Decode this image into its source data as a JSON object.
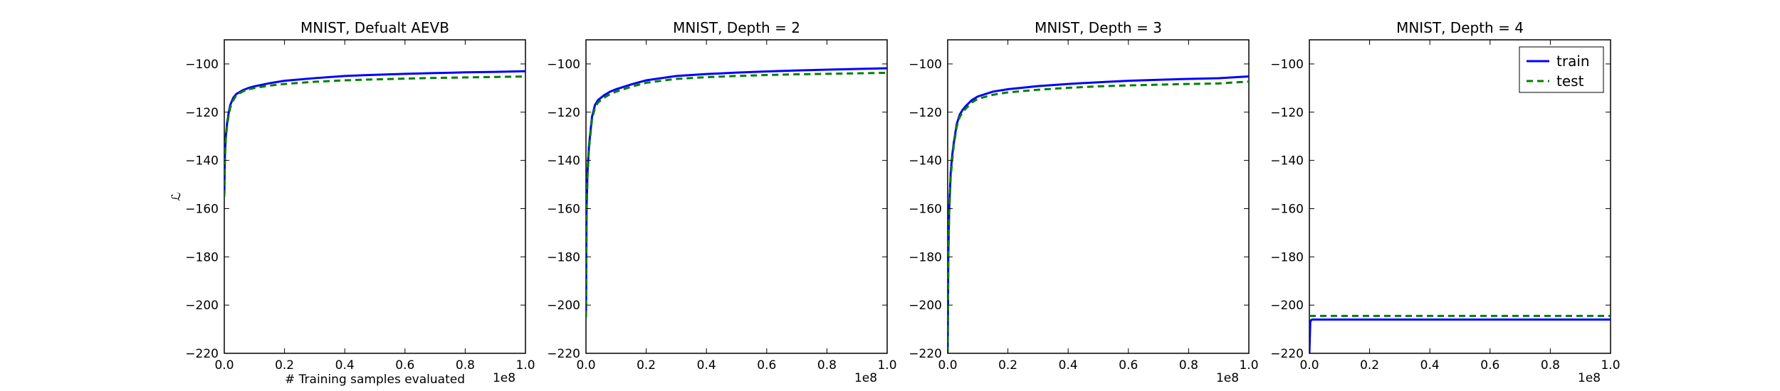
{
  "colors": {
    "train": "#0000ff",
    "test": "#008000",
    "axes": "#000000",
    "background": "#ffffff"
  },
  "chart_data": [
    {
      "type": "line",
      "title": "MNIST, Defualt AEVB",
      "xlabel": "# Training samples evaluated",
      "ylabel": "ℒ",
      "x_offset_text": "1e8",
      "xlim": [
        0,
        1.0
      ],
      "ylim": [
        -220,
        -90
      ],
      "xticks": [
        0.0,
        0.2,
        0.4,
        0.6,
        0.8,
        1.0
      ],
      "xtick_labels": [
        "0.0",
        "0.2",
        "0.4",
        "0.6",
        "0.8",
        "1.0"
      ],
      "yticks": [
        -220,
        -200,
        -180,
        -160,
        -140,
        -120,
        -100
      ],
      "ytick_labels": [
        "−220",
        "−200",
        "−180",
        "−160",
        "−140",
        "−120",
        "−100"
      ],
      "grid": false,
      "legend": null,
      "series": [
        {
          "key": "train",
          "style": "solid",
          "x": [
            0,
            0.002,
            0.005,
            0.01,
            0.015,
            0.02,
            0.03,
            0.04,
            0.06,
            0.08,
            0.1,
            0.15,
            0.2,
            0.3,
            0.4,
            0.5,
            0.6,
            0.7,
            0.8,
            0.9,
            1.0
          ],
          "y": [
            -155,
            -138,
            -130,
            -124,
            -120,
            -117,
            -114,
            -112.5,
            -111,
            -110,
            -109.3,
            -108,
            -107,
            -105.9,
            -105,
            -104.5,
            -104.1,
            -103.8,
            -103.5,
            -103.3,
            -103
          ]
        },
        {
          "key": "test",
          "style": "dashed",
          "x": [
            0,
            0.002,
            0.005,
            0.01,
            0.015,
            0.02,
            0.03,
            0.04,
            0.06,
            0.08,
            0.1,
            0.15,
            0.2,
            0.3,
            0.4,
            0.5,
            0.6,
            0.7,
            0.8,
            0.9,
            1.0
          ],
          "y": [
            -155,
            -140,
            -131,
            -125,
            -121,
            -118,
            -115,
            -113,
            -111.5,
            -110.5,
            -110,
            -109,
            -108.3,
            -107.4,
            -106.8,
            -106.4,
            -106.1,
            -105.8,
            -105.6,
            -105.4,
            -105.2
          ]
        }
      ]
    },
    {
      "type": "line",
      "title": "MNIST, Depth = 2",
      "xlabel": "",
      "ylabel": "",
      "x_offset_text": "1e8",
      "xlim": [
        0,
        1.0
      ],
      "ylim": [
        -220,
        -90
      ],
      "xticks": [
        0.0,
        0.2,
        0.4,
        0.6,
        0.8,
        1.0
      ],
      "xtick_labels": [
        "0.0",
        "0.2",
        "0.4",
        "0.6",
        "0.8",
        "1.0"
      ],
      "yticks": [
        -220,
        -200,
        -180,
        -160,
        -140,
        -120,
        -100
      ],
      "ytick_labels": [
        "−220",
        "−200",
        "−180",
        "−160",
        "−140",
        "−120",
        "−100"
      ],
      "grid": false,
      "legend": null,
      "series": [
        {
          "key": "train",
          "style": "solid",
          "x": [
            0,
            0.002,
            0.005,
            0.01,
            0.02,
            0.03,
            0.04,
            0.06,
            0.08,
            0.1,
            0.15,
            0.2,
            0.3,
            0.4,
            0.5,
            0.6,
            0.7,
            0.8,
            0.9,
            1.0
          ],
          "y": [
            -205,
            -160,
            -145,
            -134,
            -122,
            -117,
            -115,
            -113,
            -111.5,
            -110.5,
            -108.5,
            -106.8,
            -105,
            -104.2,
            -103.6,
            -103.1,
            -102.7,
            -102.4,
            -102.1,
            -101.8
          ]
        },
        {
          "key": "test",
          "style": "dashed",
          "x": [
            0,
            0.002,
            0.005,
            0.01,
            0.02,
            0.03,
            0.04,
            0.06,
            0.08,
            0.1,
            0.15,
            0.2,
            0.3,
            0.4,
            0.5,
            0.6,
            0.7,
            0.8,
            0.9,
            1.0
          ],
          "y": [
            -205,
            -162,
            -147,
            -135,
            -123,
            -118,
            -116,
            -114,
            -112.5,
            -111.5,
            -109.5,
            -107.8,
            -106.2,
            -105.5,
            -105,
            -104.6,
            -104.3,
            -104.1,
            -103.9,
            -103.7
          ]
        }
      ]
    },
    {
      "type": "line",
      "title": "MNIST, Depth = 3",
      "xlabel": "",
      "ylabel": "",
      "x_offset_text": "1e8",
      "xlim": [
        0,
        1.0
      ],
      "ylim": [
        -220,
        -90
      ],
      "xticks": [
        0.0,
        0.2,
        0.4,
        0.6,
        0.8,
        1.0
      ],
      "xtick_labels": [
        "0.0",
        "0.2",
        "0.4",
        "0.6",
        "0.8",
        "1.0"
      ],
      "yticks": [
        -220,
        -200,
        -180,
        -160,
        -140,
        -120,
        -100
      ],
      "ytick_labels": [
        "−220",
        "−200",
        "−180",
        "−160",
        "−140",
        "−120",
        "−100"
      ],
      "grid": false,
      "legend": null,
      "series": [
        {
          "key": "train",
          "style": "solid",
          "x": [
            0,
            0.002,
            0.005,
            0.01,
            0.015,
            0.02,
            0.03,
            0.04,
            0.05,
            0.06,
            0.08,
            0.1,
            0.15,
            0.2,
            0.3,
            0.4,
            0.5,
            0.6,
            0.7,
            0.8,
            0.9,
            1.0
          ],
          "y": [
            -220,
            -180,
            -160,
            -145,
            -138,
            -133,
            -125,
            -121,
            -119,
            -117.5,
            -115,
            -113.5,
            -111.5,
            -110.5,
            -109.2,
            -108.3,
            -107.6,
            -107,
            -106.6,
            -106.2,
            -105.9,
            -105.2
          ]
        },
        {
          "key": "test",
          "style": "dashed",
          "x": [
            0,
            0.002,
            0.005,
            0.01,
            0.015,
            0.02,
            0.03,
            0.04,
            0.05,
            0.06,
            0.08,
            0.1,
            0.15,
            0.2,
            0.3,
            0.4,
            0.5,
            0.6,
            0.7,
            0.8,
            0.9,
            1.0
          ],
          "y": [
            -220,
            -182,
            -162,
            -147,
            -140,
            -134,
            -126,
            -122,
            -120,
            -118.5,
            -116,
            -114.5,
            -112.8,
            -111.8,
            -110.7,
            -109.9,
            -109.3,
            -108.9,
            -108.6,
            -108.3,
            -108.1,
            -107.3
          ]
        }
      ]
    },
    {
      "type": "line",
      "title": "MNIST, Depth = 4",
      "xlabel": "",
      "ylabel": "",
      "x_offset_text": "1e8",
      "xlim": [
        0,
        1.0
      ],
      "ylim": [
        -220,
        -90
      ],
      "xticks": [
        0.0,
        0.2,
        0.4,
        0.6,
        0.8,
        1.0
      ],
      "xtick_labels": [
        "0.0",
        "0.2",
        "0.4",
        "0.6",
        "0.8",
        "1.0"
      ],
      "yticks": [
        -220,
        -200,
        -180,
        -160,
        -140,
        -120,
        -100
      ],
      "ytick_labels": [
        "−220",
        "−200",
        "−180",
        "−160",
        "−140",
        "−120",
        "−100"
      ],
      "grid": false,
      "legend": {
        "placement": "top-right",
        "entries": [
          "train",
          "test"
        ]
      },
      "series": [
        {
          "key": "train",
          "name": "train",
          "style": "solid",
          "x": [
            0,
            0.003,
            0.006,
            0.01,
            1.0
          ],
          "y": [
            -220,
            -207,
            -206.2,
            -206,
            -206
          ]
        },
        {
          "key": "test",
          "name": "test",
          "style": "dashed",
          "x": [
            0,
            1.0
          ],
          "y": [
            -204.5,
            -204.5
          ]
        }
      ]
    }
  ]
}
